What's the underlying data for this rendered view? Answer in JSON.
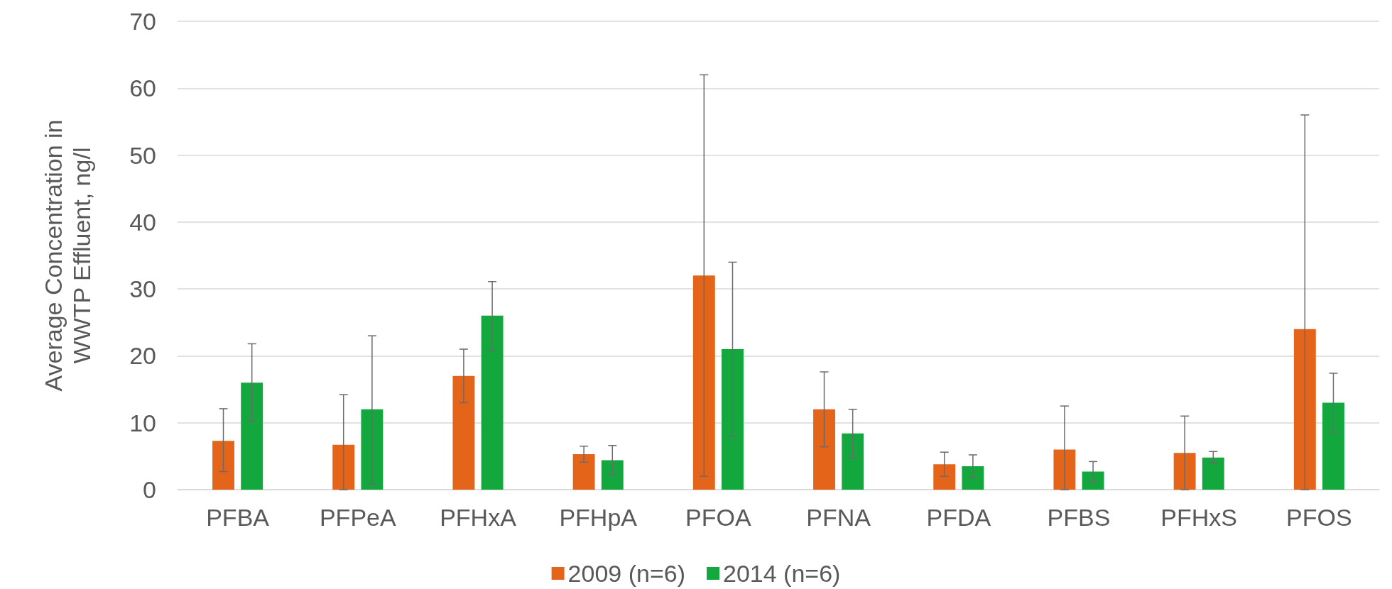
{
  "chart_data": {
    "type": "bar",
    "ylabel": "Average Concentration in\nWWTP Effluent, ng/l",
    "categories": [
      "PFBA",
      "PFPeA",
      "PFHxA",
      "PFHpA",
      "PFOA",
      "PFNA",
      "PFDA",
      "PFBS",
      "PFHxS",
      "PFOS"
    ],
    "series": [
      {
        "name": "2009 (n=6)",
        "color": "#e4641a",
        "values": [
          7.3,
          6.7,
          17,
          5.3,
          32,
          12,
          3.8,
          6,
          5.5,
          24
        ],
        "errors": [
          [
            2.7,
            12.1
          ],
          [
            0,
            14.2
          ],
          [
            13,
            21
          ],
          [
            4.1,
            6.5
          ],
          [
            2,
            62
          ],
          [
            6.4,
            17.6
          ],
          [
            2,
            5.6
          ],
          [
            0,
            12.5
          ],
          [
            0,
            11
          ],
          [
            0,
            56
          ]
        ]
      },
      {
        "name": "2014 (n=6)",
        "color": "#12a83e",
        "values": [
          16,
          12,
          26,
          4.4,
          21,
          8.4,
          3.5,
          2.7,
          4.8,
          13
        ],
        "errors": [
          [
            10.2,
            21.8
          ],
          [
            0.8,
            23
          ],
          [
            20.8,
            31.1
          ],
          [
            2.2,
            6.6
          ],
          [
            8,
            34
          ],
          [
            4.8,
            12
          ],
          [
            1.8,
            5.2
          ],
          [
            1.2,
            4.2
          ],
          [
            3.9,
            5.7
          ],
          [
            8.6,
            17.4
          ]
        ]
      }
    ],
    "ylim": [
      0,
      70
    ],
    "yticks": [
      0,
      10,
      20,
      30,
      40,
      50,
      60,
      70
    ],
    "grid": "y",
    "legend": "bottom"
  }
}
